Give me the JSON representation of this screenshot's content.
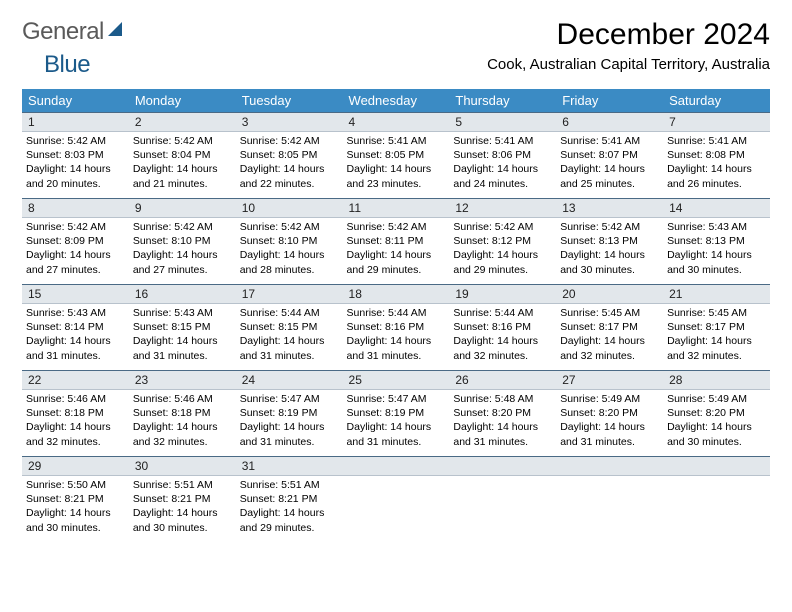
{
  "brand": {
    "part1": "General",
    "part2": "Blue"
  },
  "title": "December 2024",
  "location": "Cook, Australian Capital Territory, Australia",
  "colors": {
    "header_bg": "#3b8bc4",
    "header_text": "#ffffff",
    "daynum_bg": "#e2e7eb",
    "border": "#4a6a85"
  },
  "weekdays": [
    "Sunday",
    "Monday",
    "Tuesday",
    "Wednesday",
    "Thursday",
    "Friday",
    "Saturday"
  ],
  "days": [
    {
      "n": "1",
      "sr": "5:42 AM",
      "ss": "8:03 PM",
      "dl": "14 hours and 20 minutes."
    },
    {
      "n": "2",
      "sr": "5:42 AM",
      "ss": "8:04 PM",
      "dl": "14 hours and 21 minutes."
    },
    {
      "n": "3",
      "sr": "5:42 AM",
      "ss": "8:05 PM",
      "dl": "14 hours and 22 minutes."
    },
    {
      "n": "4",
      "sr": "5:41 AM",
      "ss": "8:05 PM",
      "dl": "14 hours and 23 minutes."
    },
    {
      "n": "5",
      "sr": "5:41 AM",
      "ss": "8:06 PM",
      "dl": "14 hours and 24 minutes."
    },
    {
      "n": "6",
      "sr": "5:41 AM",
      "ss": "8:07 PM",
      "dl": "14 hours and 25 minutes."
    },
    {
      "n": "7",
      "sr": "5:41 AM",
      "ss": "8:08 PM",
      "dl": "14 hours and 26 minutes."
    },
    {
      "n": "8",
      "sr": "5:42 AM",
      "ss": "8:09 PM",
      "dl": "14 hours and 27 minutes."
    },
    {
      "n": "9",
      "sr": "5:42 AM",
      "ss": "8:10 PM",
      "dl": "14 hours and 27 minutes."
    },
    {
      "n": "10",
      "sr": "5:42 AM",
      "ss": "8:10 PM",
      "dl": "14 hours and 28 minutes."
    },
    {
      "n": "11",
      "sr": "5:42 AM",
      "ss": "8:11 PM",
      "dl": "14 hours and 29 minutes."
    },
    {
      "n": "12",
      "sr": "5:42 AM",
      "ss": "8:12 PM",
      "dl": "14 hours and 29 minutes."
    },
    {
      "n": "13",
      "sr": "5:42 AM",
      "ss": "8:13 PM",
      "dl": "14 hours and 30 minutes."
    },
    {
      "n": "14",
      "sr": "5:43 AM",
      "ss": "8:13 PM",
      "dl": "14 hours and 30 minutes."
    },
    {
      "n": "15",
      "sr": "5:43 AM",
      "ss": "8:14 PM",
      "dl": "14 hours and 31 minutes."
    },
    {
      "n": "16",
      "sr": "5:43 AM",
      "ss": "8:15 PM",
      "dl": "14 hours and 31 minutes."
    },
    {
      "n": "17",
      "sr": "5:44 AM",
      "ss": "8:15 PM",
      "dl": "14 hours and 31 minutes."
    },
    {
      "n": "18",
      "sr": "5:44 AM",
      "ss": "8:16 PM",
      "dl": "14 hours and 31 minutes."
    },
    {
      "n": "19",
      "sr": "5:44 AM",
      "ss": "8:16 PM",
      "dl": "14 hours and 32 minutes."
    },
    {
      "n": "20",
      "sr": "5:45 AM",
      "ss": "8:17 PM",
      "dl": "14 hours and 32 minutes."
    },
    {
      "n": "21",
      "sr": "5:45 AM",
      "ss": "8:17 PM",
      "dl": "14 hours and 32 minutes."
    },
    {
      "n": "22",
      "sr": "5:46 AM",
      "ss": "8:18 PM",
      "dl": "14 hours and 32 minutes."
    },
    {
      "n": "23",
      "sr": "5:46 AM",
      "ss": "8:18 PM",
      "dl": "14 hours and 32 minutes."
    },
    {
      "n": "24",
      "sr": "5:47 AM",
      "ss": "8:19 PM",
      "dl": "14 hours and 31 minutes."
    },
    {
      "n": "25",
      "sr": "5:47 AM",
      "ss": "8:19 PM",
      "dl": "14 hours and 31 minutes."
    },
    {
      "n": "26",
      "sr": "5:48 AM",
      "ss": "8:20 PM",
      "dl": "14 hours and 31 minutes."
    },
    {
      "n": "27",
      "sr": "5:49 AM",
      "ss": "8:20 PM",
      "dl": "14 hours and 31 minutes."
    },
    {
      "n": "28",
      "sr": "5:49 AM",
      "ss": "8:20 PM",
      "dl": "14 hours and 30 minutes."
    },
    {
      "n": "29",
      "sr": "5:50 AM",
      "ss": "8:21 PM",
      "dl": "14 hours and 30 minutes."
    },
    {
      "n": "30",
      "sr": "5:51 AM",
      "ss": "8:21 PM",
      "dl": "14 hours and 30 minutes."
    },
    {
      "n": "31",
      "sr": "5:51 AM",
      "ss": "8:21 PM",
      "dl": "14 hours and 29 minutes."
    }
  ],
  "labels": {
    "sunrise": "Sunrise:",
    "sunset": "Sunset:",
    "daylight": "Daylight:"
  }
}
